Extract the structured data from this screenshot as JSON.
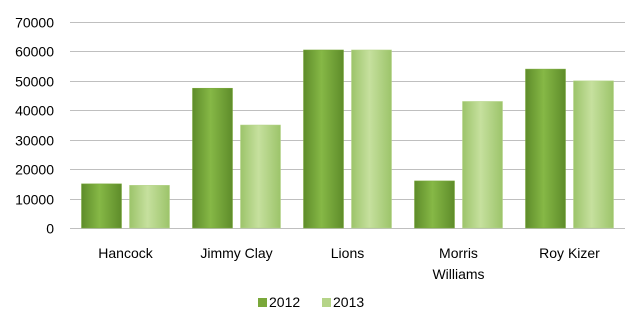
{
  "chart_data": {
    "type": "bar",
    "categories": [
      [
        "Hancock"
      ],
      [
        "Jimmy Clay"
      ],
      [
        "Lions"
      ],
      [
        "Morris",
        "Williams"
      ],
      [
        "Roy Kizer"
      ]
    ],
    "series": [
      {
        "name": "2012",
        "values": [
          15000,
          47500,
          60500,
          16000,
          54000
        ],
        "color": "#7aa83a"
      },
      {
        "name": "2013",
        "values": [
          14500,
          35000,
          60500,
          43000,
          50000
        ],
        "color": "#b5d488"
      }
    ],
    "ylim": [
      0,
      70000
    ],
    "yticks": [
      0,
      10000,
      20000,
      30000,
      40000,
      50000,
      60000,
      70000
    ],
    "grid": true,
    "legend_position": "bottom"
  }
}
